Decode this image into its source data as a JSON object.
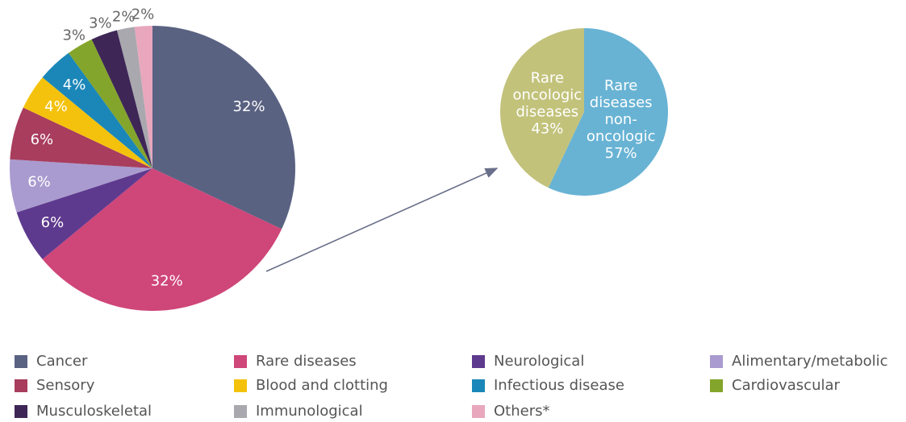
{
  "chart_data": [
    {
      "type": "pie",
      "categories": [
        "Cancer",
        "Rare diseases",
        "Neurological",
        "Alimentary/metabolic",
        "Sensory",
        "Blood and clotting",
        "Infectious disease",
        "Cardiovascular",
        "Musculoskeletal",
        "Immunological",
        "Others*"
      ],
      "values": [
        32,
        32,
        6,
        6,
        6,
        4,
        4,
        3,
        3,
        2,
        2
      ],
      "value_labels": [
        "32%",
        "32%",
        "6%",
        "6%",
        "6%",
        "4%",
        "4%",
        "3%",
        "3%",
        "2%",
        "2%"
      ],
      "colors": [
        "#5a6282",
        "#cf4679",
        "#5e3a8e",
        "#a99bcf",
        "#a83d5e",
        "#f4c20d",
        "#1b87b8",
        "#84a52b",
        "#3e2656",
        "#a8a8ae",
        "#e8a7bd"
      ],
      "legend": "bottom"
    },
    {
      "type": "pie",
      "categories": [
        [
          "Rare",
          "diseases",
          "non-",
          "oncologic"
        ],
        [
          "Rare",
          "oncologic",
          "diseases"
        ]
      ],
      "values": [
        57,
        43
      ],
      "value_labels": [
        "57%",
        "43%"
      ],
      "colors": [
        "#68b3d4",
        "#c2c27b"
      ]
    }
  ]
}
